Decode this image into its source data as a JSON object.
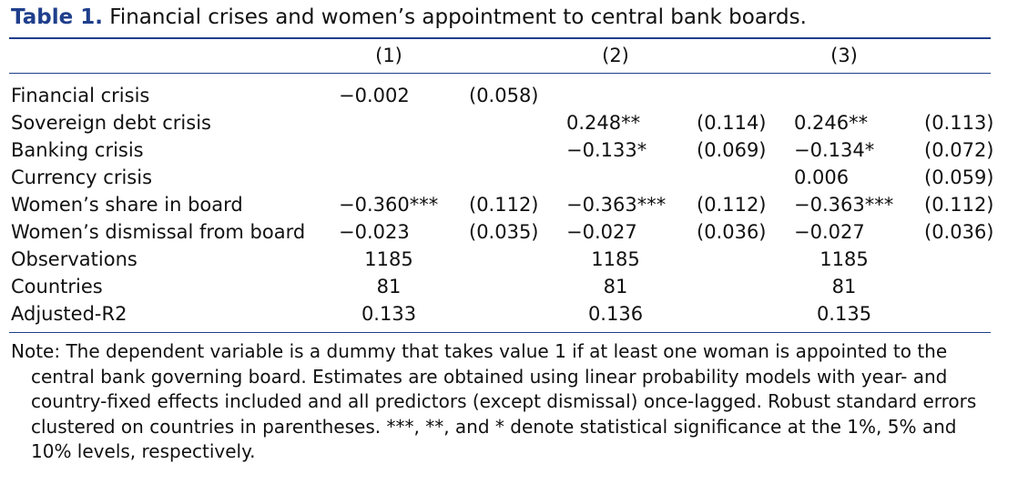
{
  "table": {
    "label": "Table 1.",
    "title": "Financial crises and women’s appointment to central bank boards.",
    "columns": [
      "(1)",
      "(2)",
      "(3)"
    ],
    "rows": [
      {
        "name": "Financial crisis",
        "cells": [
          "−0.002",
          "(0.058)",
          "",
          "",
          "",
          ""
        ]
      },
      {
        "name": "Sovereign debt crisis",
        "cells": [
          "",
          "",
          "0.248**",
          "(0.114)",
          "0.246**",
          "(0.113)"
        ]
      },
      {
        "name": "Banking crisis",
        "cells": [
          "",
          "",
          "−0.133*",
          "(0.069)",
          "−0.134*",
          "(0.072)"
        ]
      },
      {
        "name": "Currency crisis",
        "cells": [
          "",
          "",
          "",
          "",
          "0.006",
          "(0.059)"
        ]
      },
      {
        "name": "Women’s share in board",
        "cells": [
          "−0.360***",
          "(0.112)",
          "−0.363***",
          "(0.112)",
          "−0.363***",
          "(0.112)"
        ]
      },
      {
        "name": "Women’s dismissal from board",
        "cells": [
          "−0.023",
          "(0.035)",
          "−0.027",
          "(0.036)",
          "−0.027",
          "(0.036)"
        ]
      }
    ],
    "stats": [
      {
        "name": "Observations",
        "values": [
          "1185",
          "1185",
          "1185"
        ]
      },
      {
        "name": "Countries",
        "values": [
          "81",
          "81",
          "81"
        ]
      },
      {
        "name": "Adjusted-R2",
        "values": [
          "0.133",
          "0.136",
          "0.135"
        ]
      }
    ],
    "note": "Note: The dependent variable is a dummy that takes value 1 if at least one woman is appointed to the central bank governing board. Estimates are obtained using linear probability models with year- and country-fixed effects included and all predictors (except dismissal) once-lagged. Robust standard errors clustered on countries in parentheses. ***, **, and * denote statistical significance at the 1%, 5% and 10% levels, respectively."
  }
}
